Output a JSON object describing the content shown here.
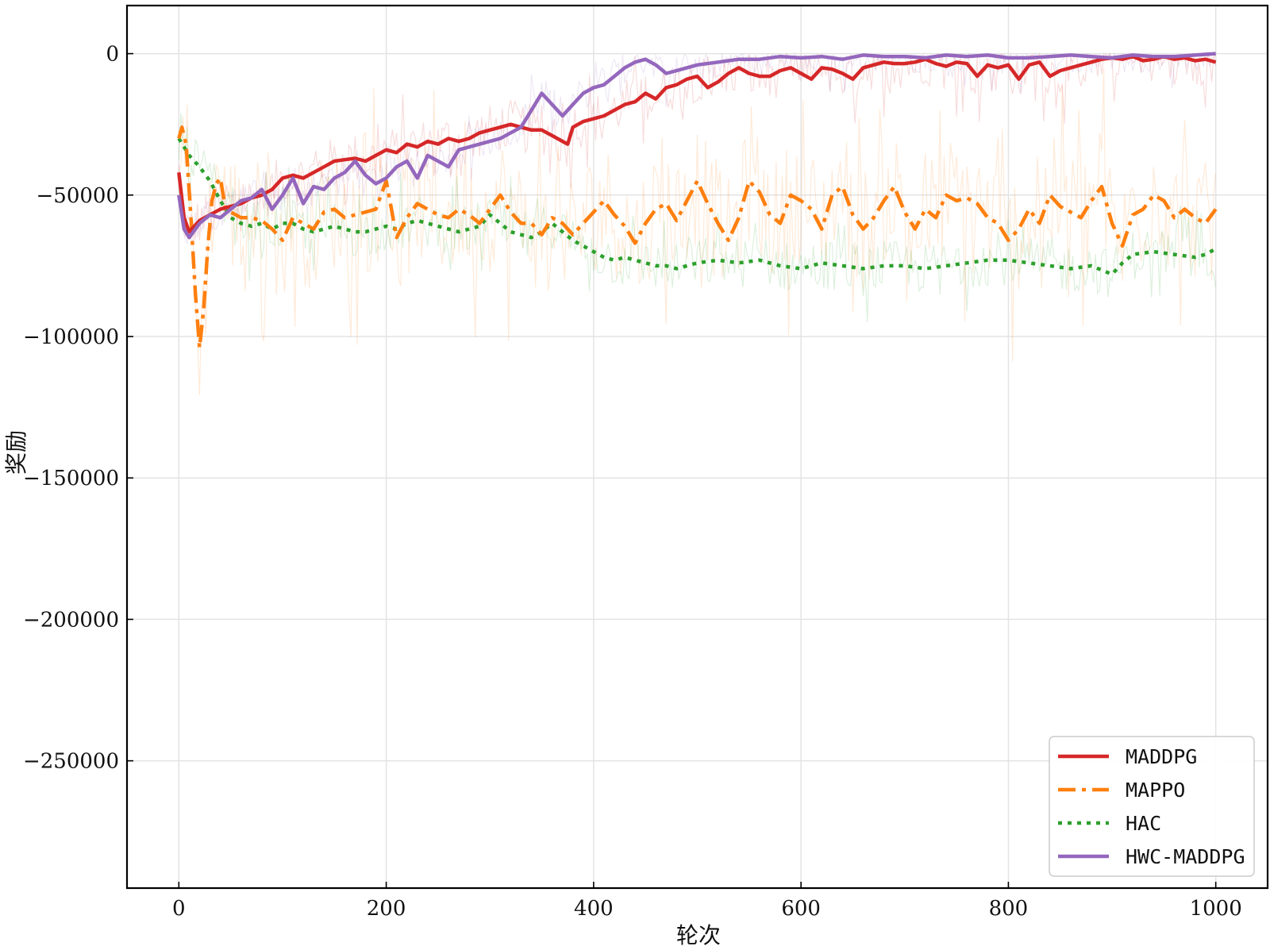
{
  "chart_data": {
    "type": "line",
    "title": "",
    "xlabel": "轮次",
    "ylabel": "奖励",
    "xlim": [
      -50,
      1050
    ],
    "ylim": [
      -295000,
      17000
    ],
    "xticks": [
      0,
      200,
      400,
      600,
      800,
      1000
    ],
    "yticks": [
      0,
      -50000,
      -100000,
      -150000,
      -200000,
      -250000
    ],
    "grid": true,
    "legend_position": "lower-right",
    "series": [
      {
        "name": "MADDPG",
        "color": "#d62728",
        "linestyle": "solid",
        "x": [
          0,
          5,
          10,
          20,
          30,
          40,
          50,
          60,
          70,
          80,
          90,
          100,
          110,
          120,
          130,
          140,
          150,
          160,
          170,
          180,
          190,
          200,
          210,
          220,
          230,
          240,
          250,
          260,
          270,
          280,
          290,
          300,
          310,
          320,
          330,
          340,
          350,
          360,
          370,
          375,
          380,
          390,
          400,
          410,
          420,
          430,
          440,
          450,
          460,
          470,
          480,
          490,
          500,
          510,
          520,
          530,
          540,
          550,
          560,
          570,
          580,
          590,
          600,
          610,
          620,
          630,
          640,
          650,
          660,
          670,
          680,
          690,
          700,
          710,
          720,
          730,
          740,
          750,
          760,
          770,
          780,
          790,
          800,
          810,
          820,
          830,
          840,
          850,
          860,
          870,
          880,
          890,
          900,
          910,
          920,
          930,
          940,
          950,
          960,
          970,
          980,
          990,
          1000
        ],
        "values": [
          -42000,
          -58000,
          -63000,
          -59000,
          -57000,
          -55000,
          -54000,
          -53000,
          -51000,
          -50000,
          -48000,
          -44000,
          -43000,
          -44000,
          -42000,
          -40000,
          -38000,
          -37500,
          -37000,
          -38000,
          -36000,
          -34000,
          -35000,
          -32000,
          -33000,
          -31000,
          -32000,
          -30000,
          -31000,
          -30000,
          -28000,
          -27000,
          -26000,
          -25000,
          -26000,
          -27000,
          -27000,
          -29000,
          -31000,
          -32000,
          -26000,
          -24000,
          -23000,
          -22000,
          -20000,
          -18000,
          -17000,
          -14000,
          -16000,
          -12000,
          -11000,
          -9000,
          -8000,
          -12000,
          -10000,
          -7000,
          -5000,
          -7000,
          -8000,
          -8000,
          -6000,
          -5000,
          -7000,
          -9000,
          -5000,
          -5500,
          -7000,
          -9000,
          -5000,
          -4000,
          -3000,
          -3500,
          -3500,
          -3000,
          -2000,
          -3500,
          -4500,
          -3000,
          -3500,
          -8000,
          -4000,
          -5000,
          -4000,
          -9000,
          -4000,
          -3000,
          -8000,
          -6000,
          -5000,
          -4000,
          -3000,
          -2000,
          -1500,
          -2000,
          -1000,
          -2500,
          -2000,
          -1000,
          -2000,
          -1500,
          -2500,
          -2000,
          -3000
        ]
      },
      {
        "name": "MAPPO",
        "color": "#ff7f0e",
        "linestyle": "dashdot",
        "x": [
          0,
          3,
          7,
          12,
          16,
          20,
          24,
          28,
          32,
          36,
          40,
          45,
          50,
          60,
          70,
          80,
          90,
          100,
          110,
          120,
          130,
          140,
          150,
          160,
          170,
          180,
          190,
          200,
          210,
          220,
          230,
          240,
          250,
          260,
          270,
          280,
          290,
          300,
          310,
          320,
          330,
          340,
          350,
          360,
          370,
          380,
          390,
          400,
          410,
          420,
          430,
          440,
          450,
          460,
          470,
          480,
          490,
          500,
          510,
          520,
          530,
          540,
          550,
          560,
          570,
          580,
          590,
          600,
          610,
          620,
          630,
          640,
          650,
          660,
          670,
          680,
          690,
          700,
          710,
          720,
          730,
          740,
          750,
          760,
          770,
          780,
          790,
          800,
          810,
          820,
          830,
          840,
          850,
          860,
          870,
          880,
          890,
          900,
          910,
          920,
          930,
          940,
          950,
          960,
          970,
          980,
          990,
          1000
        ],
        "values": [
          -30000,
          -26000,
          -32000,
          -60000,
          -85000,
          -104000,
          -90000,
          -68000,
          -52000,
          -46000,
          -44000,
          -55000,
          -56000,
          -58000,
          -58000,
          -59000,
          -62000,
          -66000,
          -58000,
          -60000,
          -62000,
          -56000,
          -55000,
          -58000,
          -57000,
          -56000,
          -55000,
          -45000,
          -65000,
          -58000,
          -53000,
          -55000,
          -57000,
          -58000,
          -55000,
          -57000,
          -60000,
          -55000,
          -50000,
          -56000,
          -60000,
          -60000,
          -64000,
          -58000,
          -60000,
          -64000,
          -60000,
          -56000,
          -52000,
          -57000,
          -61000,
          -67000,
          -60000,
          -55000,
          -53000,
          -59000,
          -52000,
          -45000,
          -53000,
          -60000,
          -66000,
          -58000,
          -45000,
          -49000,
          -57000,
          -60000,
          -50000,
          -52000,
          -55000,
          -62000,
          -50000,
          -47000,
          -57000,
          -62000,
          -58000,
          -52000,
          -47000,
          -56000,
          -62000,
          -55000,
          -58000,
          -50000,
          -52000,
          -51000,
          -53000,
          -58000,
          -60000,
          -66000,
          -62000,
          -55000,
          -60000,
          -50000,
          -54000,
          -56000,
          -58000,
          -52000,
          -47000,
          -60000,
          -68000,
          -57000,
          -55000,
          -50000,
          -52000,
          -58000,
          -55000,
          -58000,
          -60000,
          -55000
        ]
      },
      {
        "name": "HAC",
        "color": "#2ca02c",
        "linestyle": "dotted",
        "x": [
          0,
          10,
          20,
          30,
          40,
          50,
          60,
          70,
          80,
          90,
          100,
          110,
          120,
          130,
          140,
          150,
          160,
          170,
          180,
          190,
          200,
          210,
          220,
          230,
          240,
          250,
          260,
          270,
          280,
          290,
          300,
          310,
          320,
          330,
          340,
          350,
          360,
          370,
          380,
          390,
          400,
          410,
          420,
          430,
          440,
          450,
          460,
          470,
          480,
          490,
          500,
          520,
          540,
          560,
          580,
          600,
          620,
          640,
          660,
          680,
          700,
          720,
          740,
          760,
          780,
          800,
          820,
          840,
          860,
          880,
          900,
          910,
          920,
          940,
          960,
          980,
          990,
          1000
        ],
        "values": [
          -30000,
          -36000,
          -40000,
          -45000,
          -52000,
          -58000,
          -60000,
          -61000,
          -60000,
          -62000,
          -60000,
          -60000,
          -62000,
          -63000,
          -62000,
          -61000,
          -62000,
          -63000,
          -63000,
          -62000,
          -61000,
          -62000,
          -60000,
          -59000,
          -60000,
          -61000,
          -62000,
          -63000,
          -62000,
          -61000,
          -57000,
          -60000,
          -63000,
          -64000,
          -65000,
          -63000,
          -60000,
          -63000,
          -66000,
          -68000,
          -70000,
          -72000,
          -73000,
          -72000,
          -73000,
          -74000,
          -75000,
          -75000,
          -76000,
          -75000,
          -74000,
          -73000,
          -74000,
          -73000,
          -75000,
          -76000,
          -74000,
          -75000,
          -76000,
          -75000,
          -75000,
          -76000,
          -75000,
          -74000,
          -73000,
          -73000,
          -74000,
          -75000,
          -76000,
          -75000,
          -78000,
          -74000,
          -71000,
          -70000,
          -71000,
          -72000,
          -71000,
          -69000
        ]
      },
      {
        "name": "HWC-MADDPG",
        "color": "#9467bd",
        "linestyle": "solid",
        "x": [
          0,
          5,
          10,
          20,
          30,
          40,
          50,
          60,
          70,
          80,
          90,
          100,
          110,
          120,
          130,
          140,
          150,
          160,
          170,
          180,
          190,
          200,
          210,
          220,
          230,
          240,
          250,
          260,
          270,
          280,
          290,
          300,
          310,
          320,
          330,
          340,
          350,
          360,
          370,
          380,
          390,
          400,
          410,
          420,
          430,
          440,
          450,
          460,
          470,
          480,
          490,
          500,
          520,
          540,
          560,
          580,
          600,
          620,
          640,
          660,
          680,
          700,
          720,
          740,
          760,
          780,
          800,
          820,
          840,
          860,
          880,
          900,
          920,
          940,
          960,
          980,
          1000
        ],
        "values": [
          -50000,
          -62000,
          -65000,
          -60000,
          -57000,
          -58000,
          -55000,
          -52000,
          -51000,
          -48000,
          -55000,
          -50000,
          -44000,
          -53000,
          -47000,
          -48000,
          -44000,
          -42000,
          -38000,
          -43000,
          -46000,
          -44000,
          -40000,
          -38000,
          -44000,
          -36000,
          -38000,
          -40000,
          -34000,
          -33000,
          -32000,
          -31000,
          -30000,
          -28000,
          -26000,
          -20000,
          -14000,
          -18000,
          -22000,
          -18000,
          -14000,
          -12000,
          -11000,
          -8000,
          -5000,
          -3000,
          -2000,
          -4000,
          -7000,
          -6000,
          -5000,
          -4000,
          -3000,
          -2000,
          -2000,
          -1000,
          -1500,
          -1000,
          -2000,
          -500,
          -1000,
          -1000,
          -1500,
          -500,
          -1000,
          -500,
          -1500,
          -1500,
          -1000,
          -500,
          -1000,
          -1500,
          -500,
          -1000,
          -1000,
          -500,
          0
        ]
      }
    ]
  }
}
